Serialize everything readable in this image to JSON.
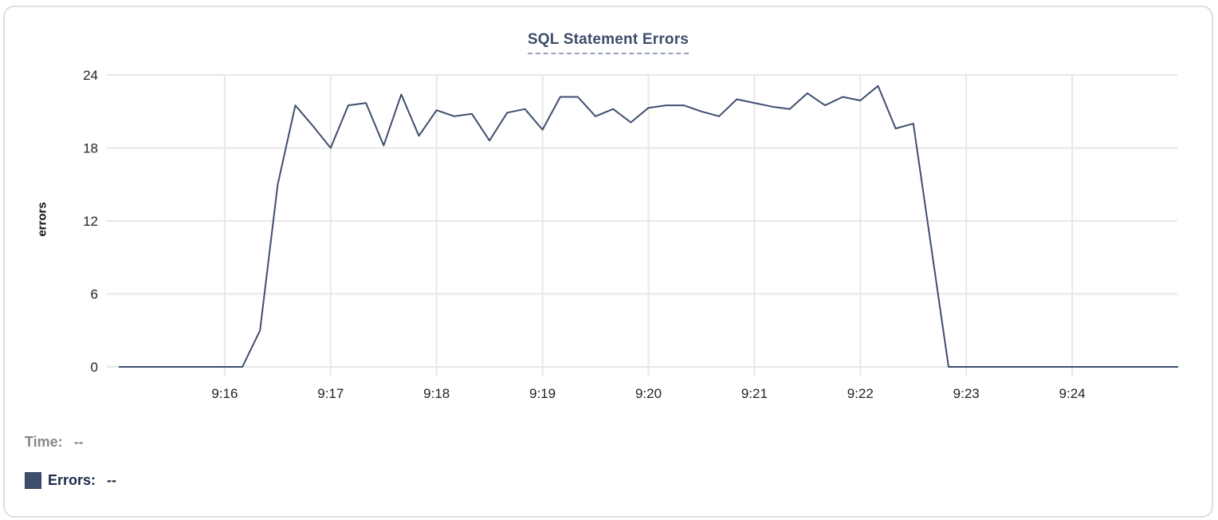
{
  "chart_data": {
    "type": "line",
    "title": "SQL Statement Errors",
    "xlabel": "",
    "ylabel": "errors",
    "x_ticks": [
      "9:16",
      "9:17",
      "9:18",
      "9:19",
      "9:20",
      "9:21",
      "9:22",
      "9:23",
      "9:24"
    ],
    "y_ticks": [
      0,
      6,
      12,
      18,
      24
    ],
    "ylim": [
      0,
      24
    ],
    "x_start": "9:15:00",
    "x_end": "9:25:00",
    "x_step_seconds": 10,
    "grid": true,
    "legend_position": "bottom-left",
    "series": [
      {
        "name": "Errors",
        "color": "#3F4E6D",
        "values": [
          0,
          0,
          0,
          0,
          0,
          0,
          0,
          0,
          3,
          15,
          21.5,
          19.8,
          18,
          21.5,
          21.7,
          18.2,
          22.4,
          19,
          21.1,
          20.6,
          20.8,
          18.6,
          20.9,
          21.2,
          19.5,
          22.2,
          22.2,
          20.6,
          21.2,
          20.1,
          21.3,
          21.5,
          21.5,
          21.0,
          20.6,
          22.0,
          21.7,
          21.4,
          21.2,
          22.5,
          21.5,
          22.2,
          21.9,
          23.1,
          19.6,
          20.0,
          10,
          0,
          0,
          0,
          0,
          0,
          0,
          0,
          0,
          0,
          0,
          0,
          0,
          0,
          0
        ]
      }
    ]
  },
  "legend": {
    "time_label": "Time:",
    "time_value": "--",
    "errors_label": "Errors:",
    "errors_value": "--",
    "swatch_color": "#3F4E6D"
  },
  "colors": {
    "line": "#3F4E6D",
    "title": "#3E4D6B",
    "title_underline": "#98A5BE",
    "grid": "#e7e7e7",
    "axis_text": "#222222",
    "time_text": "#84888C",
    "errors_text": "#1B2A4A",
    "card_border": "#dedede"
  }
}
